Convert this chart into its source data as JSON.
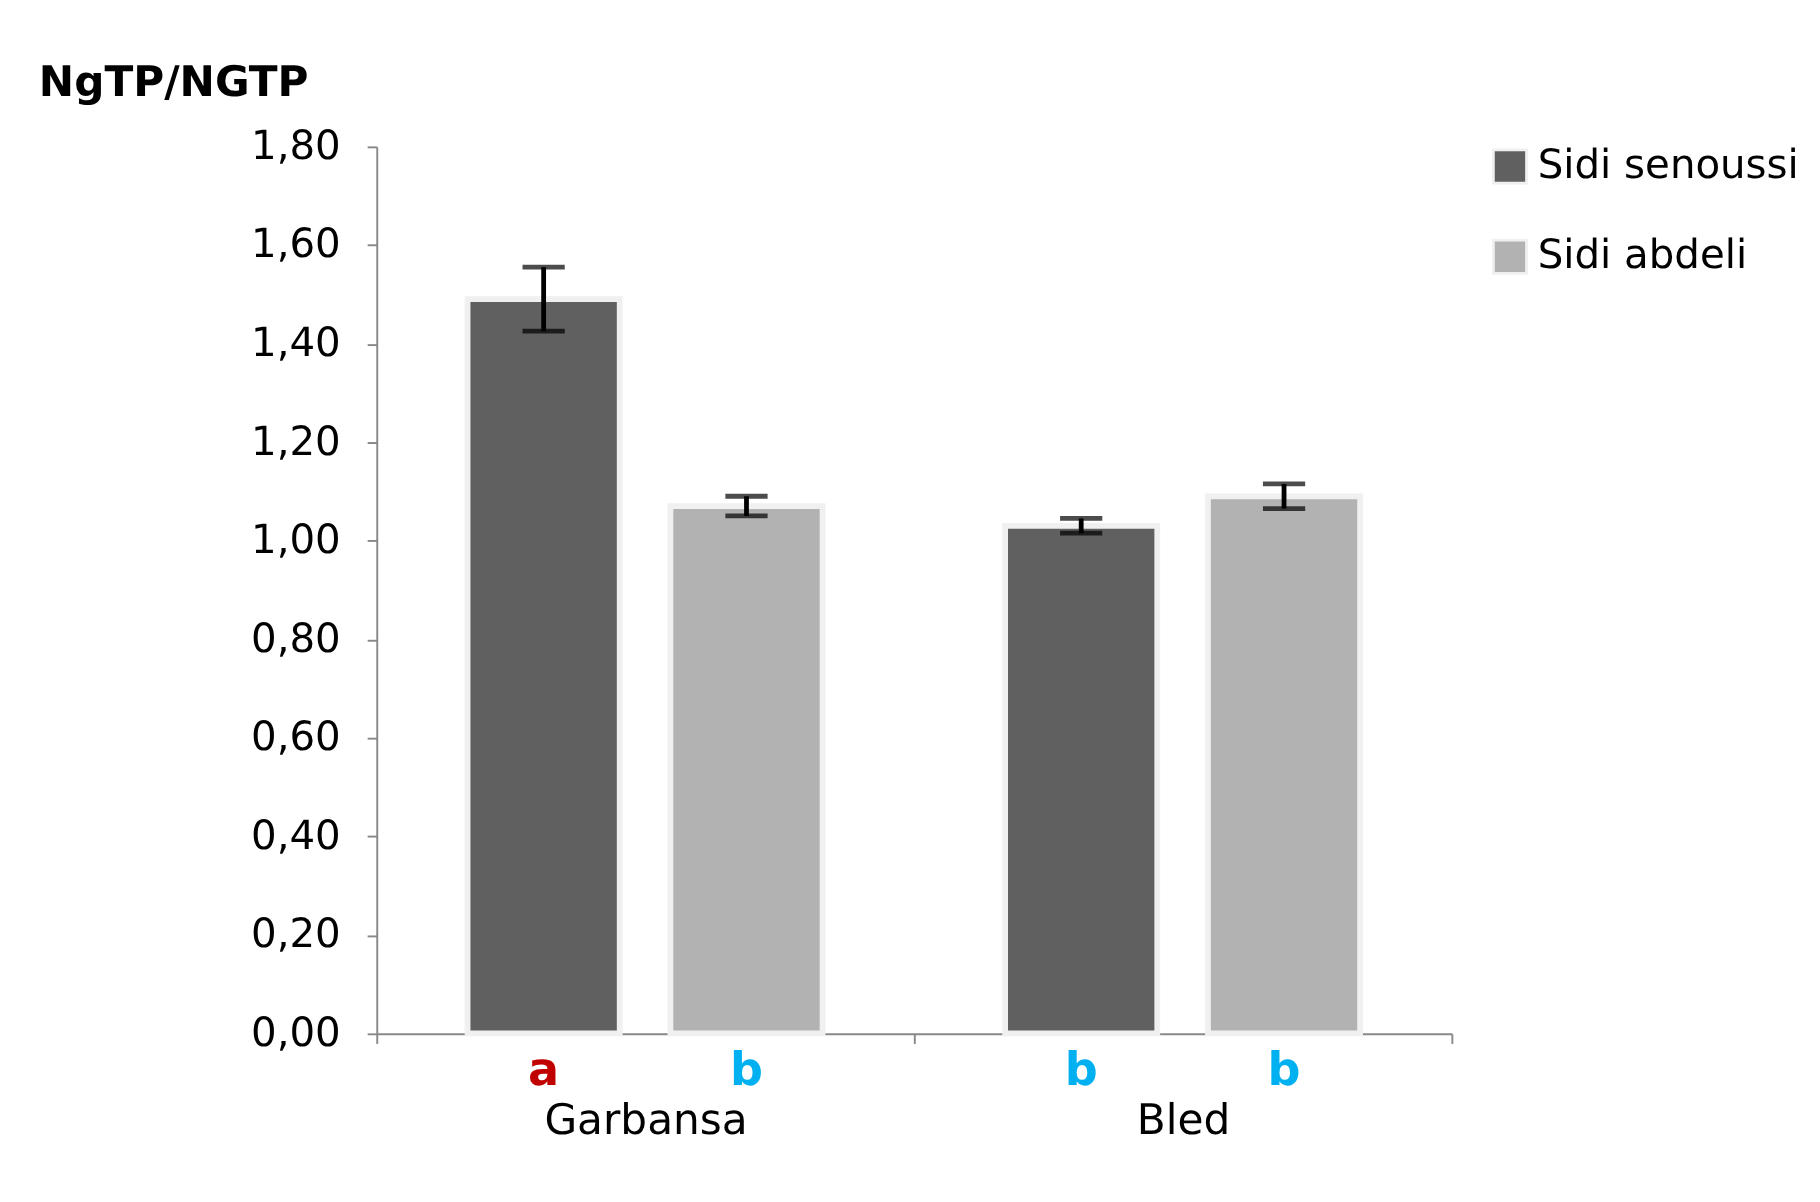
{
  "chart_data": {
    "type": "bar",
    "ylabel": "NgTP/NGTP",
    "categories": [
      "Garbansa",
      "Bled"
    ],
    "series": [
      {
        "name": "Sidi senoussi",
        "color": "#606060",
        "values": [
          1.49,
          1.03
        ],
        "errors": [
          0.065,
          0.015
        ]
      },
      {
        "name": "Sidi abdeli",
        "color": "#b2b2b2",
        "values": [
          1.07,
          1.09
        ],
        "errors": [
          0.02,
          0.025
        ]
      }
    ],
    "annotations": [
      "a",
      "b",
      "b",
      "b"
    ],
    "ylim": [
      0,
      1.8
    ],
    "yticks": [
      {
        "value": 0,
        "label": "0,00"
      },
      {
        "value": 0.2,
        "label": "0,20"
      },
      {
        "value": 0.4,
        "label": "0,40"
      },
      {
        "value": 0.6,
        "label": "0,60"
      },
      {
        "value": 0.8,
        "label": "0,80"
      },
      {
        "value": 1.0,
        "label": "1,00"
      },
      {
        "value": 1.2,
        "label": "1,20"
      },
      {
        "value": 1.4,
        "label": "1,40"
      },
      {
        "value": 1.6,
        "label": "1,60"
      },
      {
        "value": 1.8,
        "label": "1,80"
      }
    ],
    "grid": false,
    "legend": "right"
  }
}
